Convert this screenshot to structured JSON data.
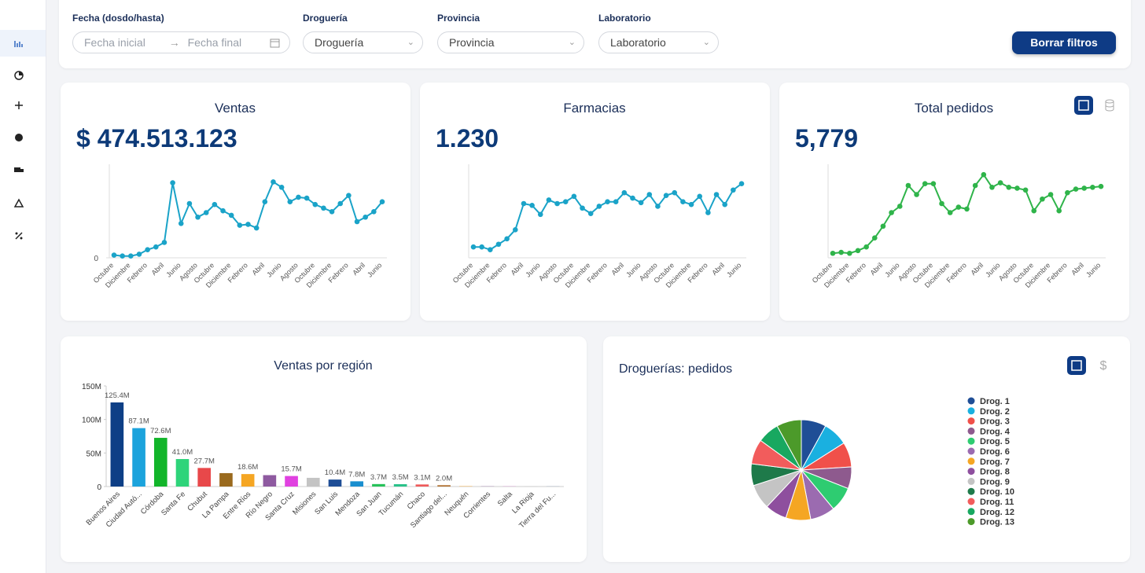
{
  "filters": {
    "date_label": "Fecha (dosdo/hasta)",
    "date_start": "Fecha inicial",
    "date_end": "Fecha final",
    "drogueria_label": "Droguería",
    "drogueria": "Droguería",
    "provincia_label": "Provincia",
    "provincia": "Provincia",
    "laboratorio_label": "Laboratorio",
    "laboratorio": "Laboratorio",
    "clear_button": "Borrar filtros"
  },
  "chart_data": [
    {
      "type": "line",
      "title": "Ventas",
      "kpi": "$ 474.513.123",
      "color": "#1aa3c8",
      "ylim": [
        0,
        100
      ],
      "yticks": [
        0
      ],
      "categories": [
        "Octubre",
        null,
        "Diciembre",
        null,
        "Febrero",
        null,
        "Abril",
        null,
        "Junio",
        null,
        "Agosto",
        null,
        "Octubre",
        null,
        "Diciembre",
        null,
        "Febrero",
        null,
        "Abril",
        null,
        "Junio",
        null,
        "Agosto",
        null,
        "Octubre",
        null,
        "Diciembre",
        null,
        "Febrero",
        null,
        "Abril",
        null,
        "Junio"
      ],
      "values": [
        3,
        2,
        2,
        4,
        9,
        12,
        17,
        83,
        38,
        60,
        45,
        50,
        59,
        52,
        47,
        36,
        37,
        33,
        62,
        84,
        78,
        62,
        67,
        66,
        59,
        55,
        51,
        60,
        69,
        40,
        45,
        51,
        62
      ]
    },
    {
      "type": "line",
      "title": "Farmacias",
      "kpi": "1.230",
      "color": "#1aa3c8",
      "ylim": [
        0,
        100
      ],
      "yticks": [],
      "categories": [
        "Octubre",
        null,
        "Diciembre",
        null,
        "Febrero",
        null,
        "Abril",
        null,
        "Junio",
        null,
        "Agosto",
        null,
        "Octubre",
        null,
        "Diciembre",
        null,
        "Febrero",
        null,
        "Abril",
        null,
        "Junio",
        null,
        "Agosto",
        null,
        "Octubre",
        null,
        "Diciembre",
        null,
        "Febrero",
        null,
        "Abril",
        null,
        "Junio"
      ],
      "values": [
        12,
        12,
        9,
        15,
        21,
        31,
        60,
        58,
        48,
        64,
        60,
        62,
        68,
        55,
        49,
        57,
        62,
        62,
        72,
        66,
        61,
        70,
        57,
        69,
        72,
        62,
        59,
        68,
        50,
        70,
        59,
        75,
        82
      ]
    },
    {
      "type": "line",
      "title": "Total pedidos",
      "kpi": "5,779",
      "color": "#2fb44a",
      "ylim": [
        0,
        100
      ],
      "yticks": [],
      "categories": [
        "Octubre",
        null,
        "Diciembre",
        null,
        "Febrero",
        null,
        "Abril",
        null,
        "Junio",
        null,
        "Agosto",
        null,
        "Octubre",
        null,
        "Diciembre",
        null,
        "Febrero",
        null,
        "Abril",
        null,
        "Junio",
        null,
        "Agosto",
        null,
        "Octubre",
        null,
        "Diciembre",
        null,
        "Febrero",
        null,
        "Abril",
        null,
        "Junio"
      ],
      "values": [
        5,
        6,
        5,
        8,
        12,
        22,
        35,
        50,
        57,
        80,
        70,
        82,
        82,
        60,
        50,
        56,
        54,
        80,
        92,
        78,
        83,
        78,
        77,
        75,
        52,
        65,
        70,
        52,
        72,
        76,
        77,
        78,
        79
      ]
    },
    {
      "type": "bar",
      "title": "Ventas por región",
      "ylim": [
        0,
        150
      ],
      "yticks": [
        0,
        {
          "value": 50,
          "label": "50M"
        },
        {
          "value": 100,
          "label": "100M"
        },
        {
          "value": 150,
          "label": "150M"
        }
      ],
      "categories": [
        "Buenos Aires",
        "Ciudad Autó...",
        "Córdoba",
        "Santa Fe",
        "Chubut",
        "La Pampa",
        "Entre Ríos",
        "Río Negro",
        "Santa Cruz",
        "Misiones",
        "San Luis",
        "Mendoza",
        "San Juan",
        "Tucumán",
        "Chaco",
        "Santiago del...",
        "Neuquén",
        "Corrientes",
        "Salta",
        "La Rioja",
        "Tierra del Fu..."
      ],
      "values": [
        125.4,
        87.1,
        72.6,
        41.0,
        27.7,
        20.0,
        18.6,
        17.0,
        15.7,
        13.0,
        10.4,
        7.8,
        3.7,
        3.5,
        3.1,
        2.0,
        0.5,
        0.3,
        0.2,
        0.1,
        0.1
      ],
      "value_labels": [
        "125.4M",
        "87.1M",
        "72.6M",
        "41.0M",
        "27.7M",
        null,
        "18.6M",
        null,
        "15.7M",
        null,
        "10.4M",
        "7.8M",
        "3.7M",
        "3.5M",
        "3.1M",
        "2.0M",
        null,
        null,
        null,
        null,
        null
      ],
      "colors": [
        "#0e3f86",
        "#1ca3dc",
        "#12b52a",
        "#2ed47a",
        "#e8484a",
        "#9a6a1e",
        "#f5a623",
        "#8e5aa0",
        "#e041e0",
        "#c4c4c4",
        "#1f4e96",
        "#1a8fcf",
        "#27c25a",
        "#2ac28a",
        "#ee5a5a",
        "#b07030",
        "#f0a030",
        "#9060a0",
        "#e050d0",
        "#c0c0c0",
        "#2050a0"
      ]
    },
    {
      "type": "pie",
      "title": "Droguerías: pedidos",
      "categories": [
        "Drog. 1",
        "Drog. 2",
        "Drog. 3",
        "Drog. 4",
        "Drog. 5",
        "Drog. 6",
        "Drog. 7",
        "Drog. 8",
        "Drog. 9",
        "Drog. 10",
        "Drog. 11",
        "Drog. 12",
        "Drog. 13"
      ],
      "values": [
        8,
        8,
        8,
        7,
        8,
        8,
        8,
        7,
        8,
        7,
        8,
        7,
        8
      ],
      "colors": [
        "#1f4e96",
        "#1ab0e0",
        "#f0504a",
        "#8e5a8e",
        "#2ecc71",
        "#9b6bb0",
        "#f5a623",
        "#8e4f9e",
        "#c4c4c4",
        "#1e7a4a",
        "#f25c5c",
        "#18a860",
        "#4c9a2a"
      ]
    }
  ]
}
